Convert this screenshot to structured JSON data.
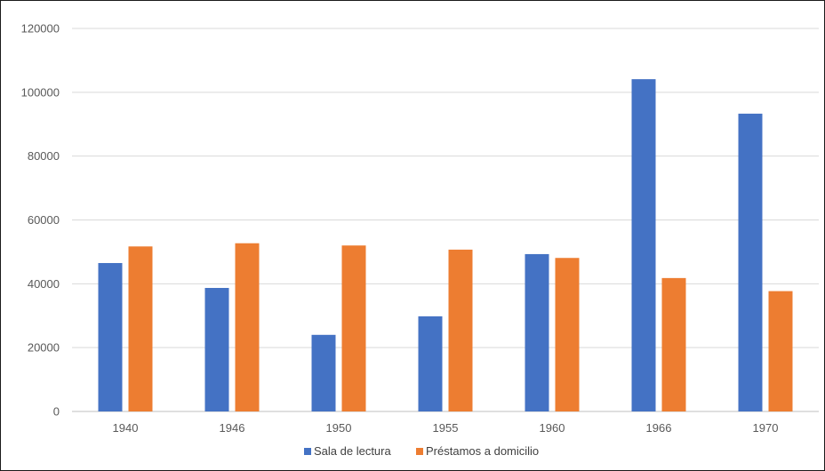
{
  "chart_data": {
    "type": "bar",
    "title": "",
    "xlabel": "",
    "ylabel": "",
    "categories": [
      "1940",
      "1946",
      "1950",
      "1955",
      "1960",
      "1966",
      "1970"
    ],
    "series": [
      {
        "name": "Sala de lectura",
        "color": "#4472C4",
        "values": [
          46500,
          38700,
          24000,
          29800,
          49300,
          104100,
          93300
        ]
      },
      {
        "name": "Préstamos a domicilio",
        "color": "#ED7D31",
        "values": [
          51700,
          52700,
          52000,
          50700,
          48100,
          41800,
          37700
        ]
      }
    ],
    "ylim": [
      0,
      120000
    ],
    "yticks": [
      0,
      20000,
      40000,
      60000,
      80000,
      100000,
      120000
    ],
    "grid": true,
    "legend_position": "bottom"
  }
}
